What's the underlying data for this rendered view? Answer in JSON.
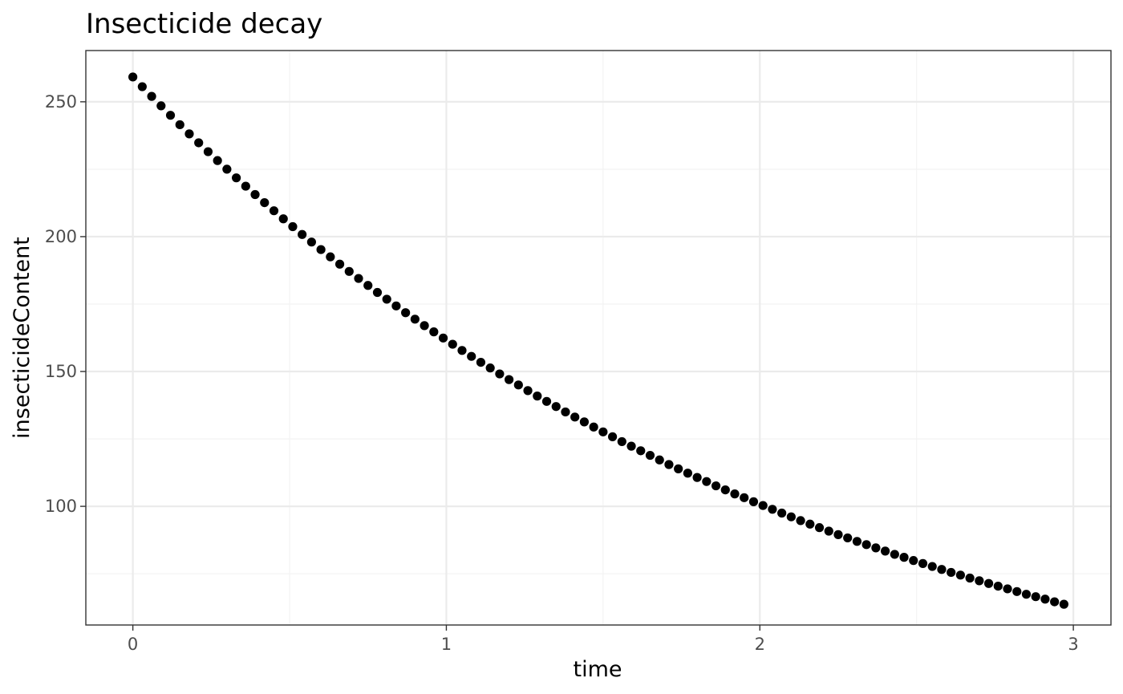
{
  "chart_data": {
    "type": "scatter",
    "title": "Insecticide decay",
    "xlabel": "time",
    "ylabel": "insecticideContent",
    "xlim": [
      -0.15,
      3.12
    ],
    "ylim": [
      56,
      269
    ],
    "x_ticks": [
      0,
      1,
      2,
      3
    ],
    "y_ticks": [
      100,
      150,
      200,
      250
    ],
    "x_tick_labels": [
      "0",
      "1",
      "2",
      "3"
    ],
    "y_tick_labels": [
      "100",
      "150",
      "200",
      "250"
    ],
    "grid": true,
    "series": [
      {
        "x": [
          0,
          0.03,
          0.06,
          0.09,
          0.12,
          0.15,
          0.18,
          0.21,
          0.24,
          0.27,
          0.3,
          0.33,
          0.36,
          0.39,
          0.42,
          0.45,
          0.48,
          0.51,
          0.54,
          0.57,
          0.6,
          0.63,
          0.66,
          0.69,
          0.72,
          0.75,
          0.78,
          0.81,
          0.84,
          0.87,
          0.9,
          0.93,
          0.96,
          0.99,
          1.02,
          1.05,
          1.08,
          1.11,
          1.14,
          1.17,
          1.2,
          1.23,
          1.26,
          1.29,
          1.32,
          1.35,
          1.38,
          1.41,
          1.44,
          1.47,
          1.5,
          1.53,
          1.56,
          1.59,
          1.62,
          1.65,
          1.68,
          1.71,
          1.74,
          1.77,
          1.8,
          1.83,
          1.86,
          1.89,
          1.92,
          1.95,
          1.98,
          2.01,
          2.04,
          2.07,
          2.1,
          2.13,
          2.16,
          2.19,
          2.22,
          2.25,
          2.28,
          2.31,
          2.34,
          2.37,
          2.4,
          2.43,
          2.46,
          2.49,
          2.52,
          2.55,
          2.58,
          2.61,
          2.64,
          2.67,
          2.7,
          2.73,
          2.76,
          2.79,
          2.82,
          2.85,
          2.88,
          2.91,
          2.94,
          2.97
        ],
        "y": [
          259.2,
          255.6,
          252,
          248.5,
          245,
          241.5,
          238.1,
          234.8,
          231.5,
          228.2,
          225,
          221.8,
          218.7,
          215.6,
          212.6,
          209.6,
          206.6,
          203.7,
          200.8,
          198,
          195.2,
          192.5,
          189.8,
          187.1,
          184.5,
          181.9,
          179.3,
          176.8,
          174.3,
          171.8,
          169.4,
          167,
          164.7,
          162.4,
          160.1,
          157.8,
          155.6,
          153.4,
          151.3,
          149.1,
          147,
          145,
          142.9,
          140.9,
          138.9,
          137,
          135,
          133.1,
          131.3,
          129.4,
          127.6,
          125.8,
          124,
          122.3,
          120.6,
          118.9,
          117.2,
          115.5,
          113.9,
          112.3,
          110.7,
          109.2,
          107.6,
          106.1,
          104.6,
          103.2,
          101.7,
          100.3,
          98.9,
          97.5,
          96.1,
          94.7,
          93.4,
          92.1,
          90.8,
          89.5,
          88.3,
          87,
          85.8,
          84.6,
          83.4,
          82.2,
          81.1,
          79.9,
          78.8,
          77.7,
          76.6,
          75.5,
          74.5,
          73.4,
          72.4,
          71.4,
          70.4,
          69.4,
          68.4,
          67.4,
          66.5,
          65.6,
          64.6,
          63.7
        ],
        "color": "#000000"
      }
    ]
  }
}
